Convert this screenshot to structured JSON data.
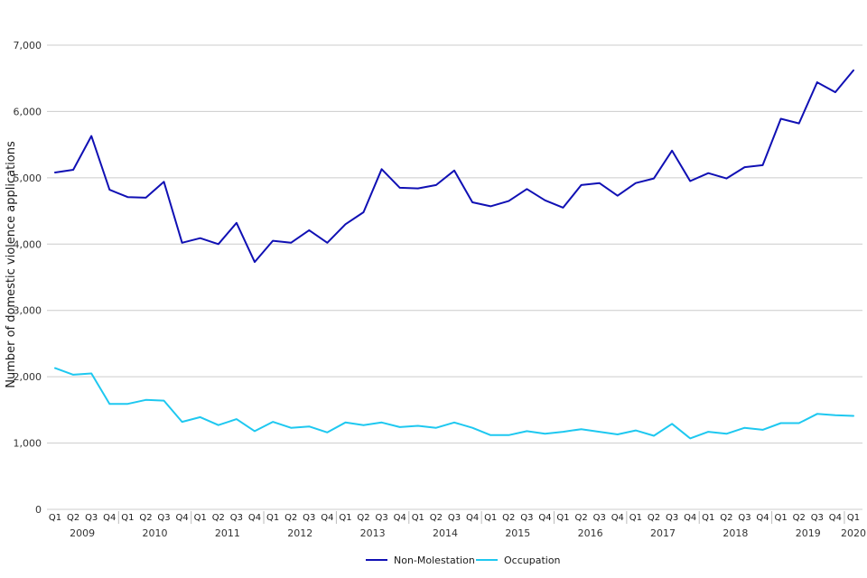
{
  "chart_data": {
    "type": "line",
    "title": "",
    "xlabel": "",
    "ylabel": "Number of domestic violence applications",
    "ylim": [
      0,
      7000
    ],
    "yticks": [
      0,
      1000,
      2000,
      3000,
      4000,
      5000,
      6000,
      7000
    ],
    "ytick_labels": [
      "0",
      "1,000",
      "2,000",
      "3,000",
      "4,000",
      "5,000",
      "6,000",
      "7,000"
    ],
    "grid": "horizontal",
    "legend_position": "bottom-center",
    "years": [
      "2009",
      "2010",
      "2011",
      "2012",
      "2013",
      "2014",
      "2015",
      "2016",
      "2017",
      "2018",
      "2019",
      "2020"
    ],
    "categories": [
      "Q1",
      "Q2",
      "Q3",
      "Q4",
      "Q1",
      "Q2",
      "Q3",
      "Q4",
      "Q1",
      "Q2",
      "Q3",
      "Q4",
      "Q1",
      "Q2",
      "Q3",
      "Q4",
      "Q1",
      "Q2",
      "Q3",
      "Q4",
      "Q1",
      "Q2",
      "Q3",
      "Q4",
      "Q1",
      "Q2",
      "Q3",
      "Q4",
      "Q1",
      "Q2",
      "Q3",
      "Q4",
      "Q1",
      "Q2",
      "Q3",
      "Q4",
      "Q1",
      "Q2",
      "Q3",
      "Q4",
      "Q1",
      "Q2",
      "Q3",
      "Q4",
      "Q1"
    ],
    "series": [
      {
        "name": "Non-Molestation",
        "color": "#1010b4",
        "values": [
          5080,
          5120,
          5630,
          4820,
          4710,
          4700,
          4940,
          4020,
          4090,
          4000,
          4320,
          3730,
          4050,
          4020,
          4210,
          4020,
          4300,
          4480,
          5130,
          4850,
          4840,
          4890,
          5110,
          4630,
          4570,
          4650,
          4830,
          4660,
          4550,
          4890,
          4920,
          4730,
          4920,
          4990,
          5410,
          4950,
          5070,
          4990,
          5160,
          5190,
          5890,
          5820,
          6440,
          6290,
          6620
        ]
      },
      {
        "name": "Occupation",
        "color": "#1ec8f0",
        "values": [
          2130,
          2030,
          2050,
          1590,
          1590,
          1650,
          1640,
          1320,
          1390,
          1270,
          1360,
          1180,
          1320,
          1230,
          1250,
          1160,
          1310,
          1270,
          1310,
          1240,
          1260,
          1230,
          1310,
          1230,
          1120,
          1120,
          1180,
          1140,
          1170,
          1210,
          1170,
          1130,
          1190,
          1110,
          1290,
          1070,
          1170,
          1140,
          1230,
          1200,
          1300,
          1300,
          1440,
          1420,
          1410
        ]
      }
    ]
  }
}
